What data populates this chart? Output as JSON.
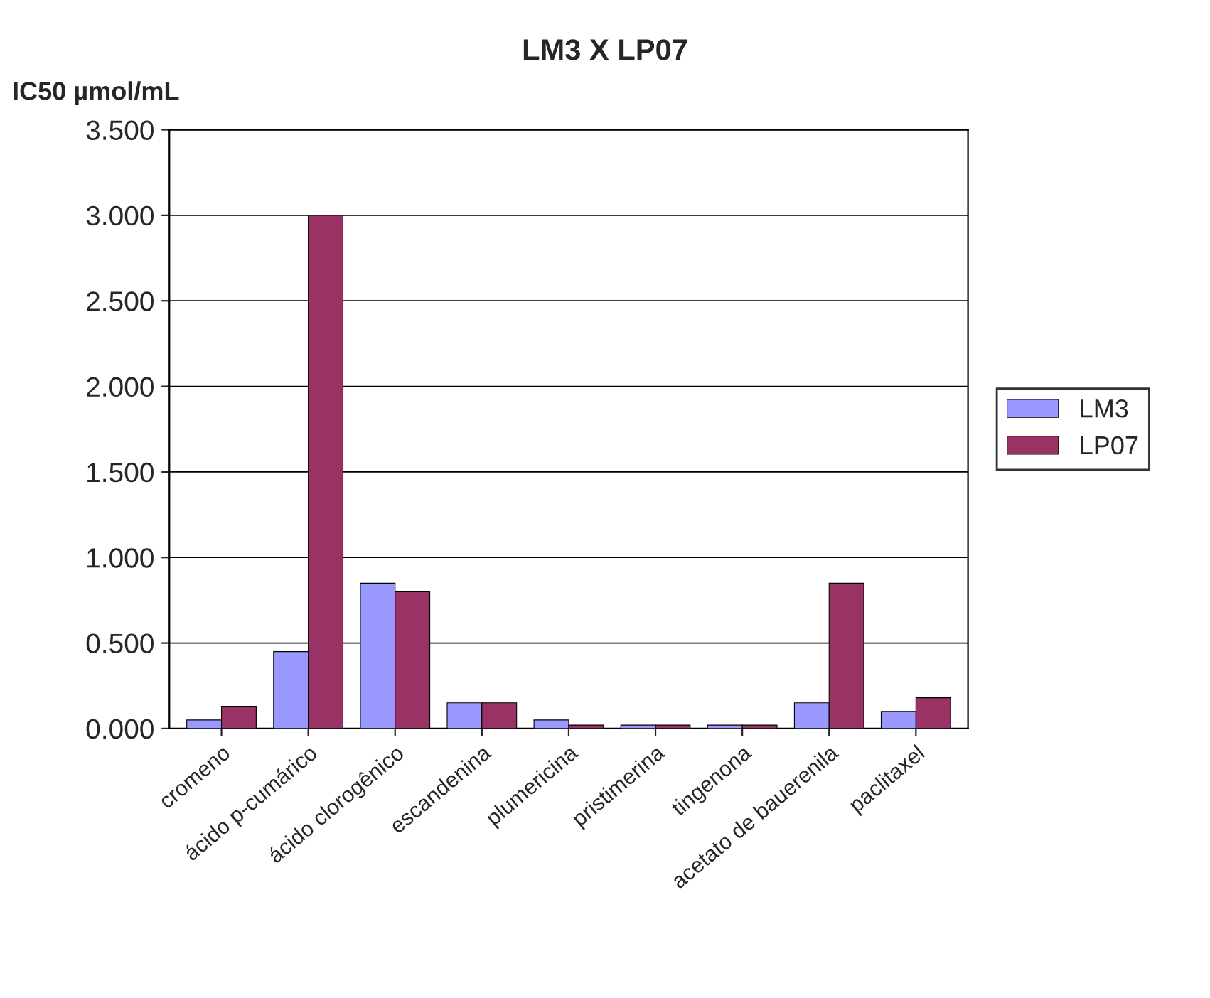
{
  "chart_data": {
    "type": "bar",
    "title": "LM3 X LP07",
    "ylabel": "IC50 µmol/mL",
    "categories": [
      "cromeno",
      "ácido p-cumárico",
      "ácido clorogênico",
      "escandenina",
      "plumericina",
      "pristimerina",
      "tingenona",
      "acetato de bauerenila",
      "paclitaxel"
    ],
    "series": [
      {
        "name": "LM3",
        "color": "#9999ff",
        "values": [
          0.05,
          0.45,
          0.85,
          0.15,
          0.05,
          0.02,
          0.02,
          0.15,
          0.1
        ]
      },
      {
        "name": "LP07",
        "color": "#993366",
        "values": [
          0.13,
          3.0,
          0.8,
          0.15,
          0.02,
          0.02,
          0.02,
          0.85,
          0.18
        ]
      }
    ],
    "ylim": [
      0,
      3.5
    ],
    "yticks": [
      {
        "value": 0,
        "label": "0.000"
      },
      {
        "value": 0.5,
        "label": "0.500"
      },
      {
        "value": 1,
        "label": "1.000"
      },
      {
        "value": 1.5,
        "label": "1.500"
      },
      {
        "value": 2,
        "label": "2.000"
      },
      {
        "value": 2.5,
        "label": "2.500"
      },
      {
        "value": 3,
        "label": "3.000"
      },
      {
        "value": 3.5,
        "label": "3.500"
      }
    ],
    "grid": "y",
    "legend": "right"
  }
}
